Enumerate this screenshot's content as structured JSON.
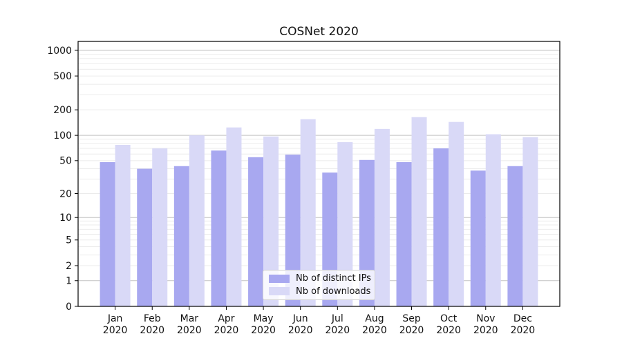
{
  "title": "COSNet 2020",
  "colors": {
    "ips_bar": "#a8a8f0",
    "downloads_bar": "#d9d9f7",
    "grid_major": "#c2c2c2",
    "grid_minor": "#ebebeb",
    "spine": "#000000",
    "text": "#111111",
    "legend_border": "#cfcfcf"
  },
  "chart_data": {
    "type": "bar",
    "title": "COSNet 2020",
    "categories": [
      "Jan 2020",
      "Feb 2020",
      "Mar 2020",
      "Apr 2020",
      "May 2020",
      "Jun 2020",
      "Jul 2020",
      "Aug 2020",
      "Sep 2020",
      "Oct 2020",
      "Nov 2020",
      "Dec 2020"
    ],
    "x_tick_months": [
      "Jan",
      "Feb",
      "Mar",
      "Apr",
      "May",
      "Jun",
      "Jul",
      "Aug",
      "Sep",
      "Oct",
      "Nov",
      "Dec"
    ],
    "x_tick_year": "2020",
    "series": [
      {
        "name": "Nb of distinct IPs",
        "color": "#a8a8f0",
        "values": [
          48,
          40,
          43,
          66,
          55,
          59,
          36,
          51,
          48,
          70,
          38,
          43
        ]
      },
      {
        "name": "Nb of downloads",
        "color": "#d9d9f7",
        "values": [
          77,
          70,
          100,
          124,
          97,
          155,
          83,
          119,
          164,
          144,
          103,
          95
        ]
      }
    ],
    "xlabel": "",
    "ylabel": "",
    "yscale": "log1p",
    "yticks": [
      0,
      1,
      2,
      5,
      10,
      20,
      50,
      100,
      200,
      500,
      1000
    ],
    "ylim": [
      0,
      1270
    ],
    "grid": true,
    "legend_position": "lower-center"
  }
}
